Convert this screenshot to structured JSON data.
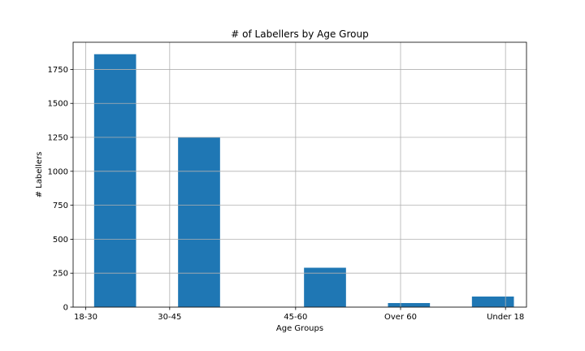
{
  "chart_data": {
    "type": "bar",
    "title": "# of Labellers by Age Group",
    "xlabel": "Age Groups",
    "ylabel": "# Labellers",
    "ylim": [
      0,
      1950
    ],
    "yticks": [
      0,
      250,
      500,
      750,
      1000,
      1250,
      1500,
      1750
    ],
    "xticks": [
      {
        "label": "18-30",
        "pos": 0
      },
      {
        "label": "30-45",
        "pos": 1
      },
      {
        "label": "45-60",
        "pos": 2.5
      },
      {
        "label": "Over 60",
        "pos": 3.75
      },
      {
        "label": "Under 18",
        "pos": 5
      }
    ],
    "xlim": [
      -0.15,
      5.25
    ],
    "bars": [
      {
        "category": "18-30",
        "value": 1862,
        "start": 0.1,
        "end": 0.6
      },
      {
        "category": "30-45",
        "value": 1250,
        "start": 1.1,
        "end": 1.6
      },
      {
        "category": "45-60",
        "value": 290,
        "start": 2.6,
        "end": 3.1
      },
      {
        "category": "Over 60",
        "value": 30,
        "start": 3.6,
        "end": 4.1
      },
      {
        "category": "Under 18",
        "value": 78,
        "start": 4.6,
        "end": 5.1
      }
    ],
    "grid": true,
    "bar_color": "#1f77b4"
  }
}
